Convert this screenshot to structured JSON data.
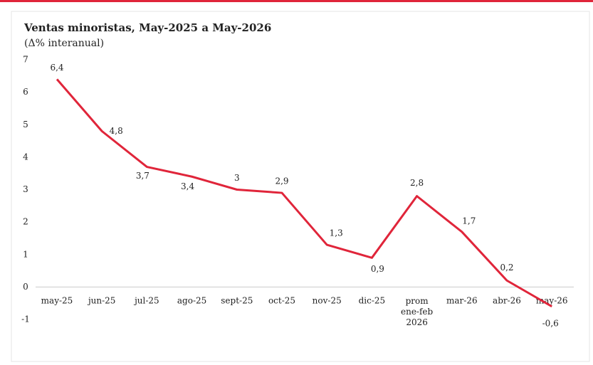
{
  "chart_data": {
    "type": "line",
    "title": "Ventas minoristas, May-2025 a May-2026",
    "subtitle": "(Δ% interanual)",
    "categories": [
      "may-25",
      "jun-25",
      "jul-25",
      "ago-25",
      "sept-25",
      "oct-25",
      "nov-25",
      "dic-25",
      "prom ene-feb 2026",
      "mar-26",
      "abr-26",
      "may-26"
    ],
    "series": [
      {
        "name": "Ventas minoristas",
        "color": "#e0253a",
        "values": [
          6.4,
          4.8,
          3.7,
          3.4,
          3,
          2.9,
          1.3,
          0.9,
          2.8,
          1.7,
          0.2,
          -0.6
        ],
        "value_labels": [
          "6,4",
          "4,8",
          "3,7",
          "3,4",
          "3",
          "2,9",
          "1,3",
          "0,9",
          "2,8",
          "1,7",
          "0,2",
          "-0,6"
        ]
      }
    ],
    "ylim": [
      -1,
      7
    ],
    "yticks": [
      -1,
      0,
      1,
      2,
      3,
      4,
      5,
      6,
      7
    ]
  }
}
